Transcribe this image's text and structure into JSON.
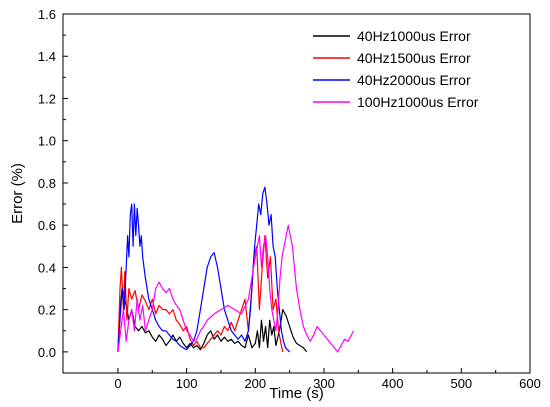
{
  "chart_data": {
    "type": "line",
    "title": "",
    "xlabel": "Time (s)",
    "ylabel": "Error (%)",
    "xlim": [
      -80,
      600
    ],
    "ylim": [
      -0.1,
      1.6
    ],
    "xticks": [
      "0",
      "100",
      "200",
      "300",
      "400",
      "500",
      "600"
    ],
    "xtick_values": [
      0,
      100,
      200,
      300,
      400,
      500,
      600
    ],
    "yticks": [
      "0.0",
      "0.2",
      "0.4",
      "0.6",
      "0.8",
      "1.0",
      "1.2",
      "1.4",
      "1.6"
    ],
    "ytick_values": [
      0,
      0.2,
      0.4,
      0.6,
      0.8,
      1.0,
      1.2,
      1.4,
      1.6
    ],
    "grid": false,
    "legend_position": "top-right",
    "series": [
      {
        "name": "40Hz1000us Error",
        "color": "#000000",
        "x": [
          0,
          3,
          6,
          9,
          12,
          16,
          20,
          25,
          30,
          35,
          40,
          45,
          50,
          55,
          60,
          65,
          70,
          75,
          80,
          85,
          90,
          95,
          100,
          105,
          110,
          115,
          120,
          125,
          130,
          135,
          140,
          145,
          150,
          155,
          160,
          165,
          170,
          175,
          180,
          185,
          190,
          195,
          200,
          203,
          206,
          209,
          212,
          215,
          218,
          221,
          224,
          227,
          230,
          235,
          240,
          245,
          250,
          255,
          260,
          265,
          270,
          275
        ],
        "y": [
          0.0,
          0.2,
          0.3,
          0.25,
          0.22,
          0.15,
          0.2,
          0.12,
          0.1,
          0.12,
          0.09,
          0.1,
          0.07,
          0.05,
          0.08,
          0.06,
          0.03,
          0.05,
          0.08,
          0.05,
          0.07,
          0.04,
          0.02,
          0.04,
          0.02,
          0.03,
          0.01,
          0.04,
          0.08,
          0.1,
          0.06,
          0.08,
          0.05,
          0.07,
          0.05,
          0.06,
          0.04,
          0.05,
          0.03,
          0.02,
          0.08,
          0.02,
          0.04,
          0.1,
          0.02,
          0.15,
          0.05,
          0.12,
          0.02,
          0.15,
          0.08,
          0.12,
          0.03,
          0.1,
          0.2,
          0.17,
          0.12,
          0.07,
          0.04,
          0.03,
          0.02,
          0.0
        ]
      },
      {
        "name": "40Hz1500us Error",
        "color": "#ff0000",
        "x": [
          0,
          3,
          5,
          8,
          10,
          13,
          16,
          20,
          25,
          30,
          35,
          40,
          45,
          50,
          55,
          60,
          65,
          70,
          75,
          80,
          85,
          90,
          95,
          100,
          105,
          110,
          115,
          120,
          125,
          130,
          135,
          140,
          145,
          150,
          155,
          160,
          165,
          170,
          175,
          180,
          185,
          190,
          195,
          198,
          202,
          206,
          210,
          214,
          218,
          222,
          226,
          230,
          234,
          238,
          240
        ],
        "y": [
          0.0,
          0.3,
          0.4,
          0.2,
          0.38,
          0.15,
          0.3,
          0.25,
          0.29,
          0.2,
          0.27,
          0.24,
          0.2,
          0.25,
          0.18,
          0.22,
          0.2,
          0.2,
          0.18,
          0.2,
          0.15,
          0.13,
          0.1,
          0.12,
          0.06,
          0.03,
          0.05,
          0.02,
          0.02,
          0.04,
          0.06,
          0.08,
          0.1,
          0.08,
          0.12,
          0.1,
          0.14,
          0.1,
          0.15,
          0.2,
          0.25,
          0.1,
          0.3,
          0.45,
          0.5,
          0.2,
          0.4,
          0.55,
          0.35,
          0.45,
          0.2,
          0.25,
          0.1,
          0.03,
          0.0
        ]
      },
      {
        "name": "40Hz2000us Error",
        "color": "#0000ff",
        "x": [
          0,
          3,
          6,
          9,
          12,
          14,
          16,
          18,
          20,
          22,
          24,
          26,
          28,
          30,
          32,
          34,
          36,
          38,
          40,
          45,
          50,
          55,
          60,
          65,
          70,
          75,
          80,
          85,
          90,
          95,
          100,
          105,
          110,
          115,
          120,
          125,
          130,
          135,
          140,
          145,
          150,
          155,
          160,
          165,
          170,
          175,
          180,
          185,
          190,
          193,
          196,
          199,
          202,
          205,
          208,
          211,
          214,
          217,
          220,
          223,
          226,
          229,
          232,
          235,
          238,
          241,
          244,
          247,
          250
        ],
        "y": [
          0.0,
          0.15,
          0.3,
          0.2,
          0.4,
          0.55,
          0.45,
          0.65,
          0.7,
          0.5,
          0.7,
          0.55,
          0.68,
          0.6,
          0.5,
          0.55,
          0.45,
          0.4,
          0.35,
          0.25,
          0.2,
          0.15,
          0.12,
          0.1,
          0.1,
          0.08,
          0.06,
          0.05,
          0.03,
          0.02,
          0.01,
          0.03,
          0.05,
          0.1,
          0.2,
          0.3,
          0.4,
          0.45,
          0.47,
          0.4,
          0.3,
          0.2,
          0.15,
          0.1,
          0.08,
          0.06,
          0.08,
          0.05,
          0.1,
          0.2,
          0.35,
          0.5,
          0.6,
          0.7,
          0.65,
          0.75,
          0.78,
          0.7,
          0.6,
          0.65,
          0.5,
          0.45,
          0.3,
          0.2,
          0.1,
          0.05,
          0.02,
          0.01,
          0.0
        ]
      },
      {
        "name": "100Hz1000us Error",
        "color": "#ff00ff",
        "x": [
          0,
          4,
          8,
          12,
          16,
          20,
          24,
          28,
          32,
          36,
          40,
          45,
          50,
          55,
          60,
          65,
          70,
          75,
          80,
          85,
          90,
          95,
          100,
          105,
          110,
          115,
          120,
          125,
          130,
          140,
          150,
          160,
          170,
          180,
          190,
          195,
          200,
          203,
          206,
          209,
          212,
          215,
          218,
          221,
          224,
          227,
          230,
          233,
          236,
          239,
          242,
          245,
          248,
          251,
          254,
          257,
          260,
          265,
          270,
          275,
          280,
          285,
          290,
          295,
          300,
          305,
          310,
          315,
          320,
          325,
          330,
          335,
          340,
          343
        ],
        "y": [
          0.0,
          0.1,
          0.2,
          0.05,
          0.15,
          0.2,
          0.1,
          0.25,
          0.15,
          0.22,
          0.1,
          0.15,
          0.2,
          0.3,
          0.33,
          0.3,
          0.28,
          0.3,
          0.25,
          0.22,
          0.2,
          0.15,
          0.1,
          0.08,
          0.05,
          0.06,
          0.1,
          0.12,
          0.15,
          0.18,
          0.2,
          0.22,
          0.2,
          0.18,
          0.25,
          0.35,
          0.45,
          0.5,
          0.55,
          0.4,
          0.5,
          0.55,
          0.45,
          0.3,
          0.2,
          0.15,
          0.1,
          0.2,
          0.35,
          0.45,
          0.5,
          0.55,
          0.6,
          0.55,
          0.5,
          0.4,
          0.3,
          0.2,
          0.12,
          0.08,
          0.05,
          0.08,
          0.12,
          0.1,
          0.08,
          0.06,
          0.04,
          0.02,
          0.0,
          0.03,
          0.06,
          0.05,
          0.08,
          0.1
        ]
      }
    ]
  }
}
